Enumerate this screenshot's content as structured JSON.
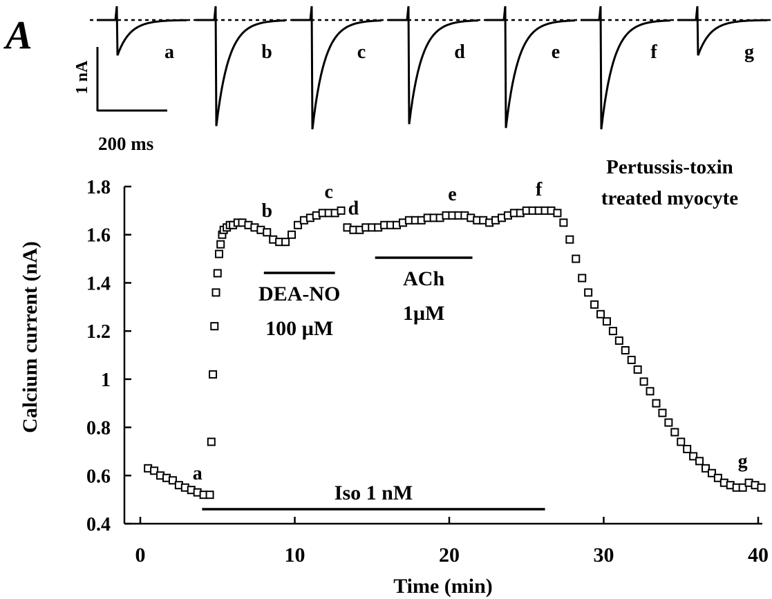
{
  "panel_label": "A",
  "scale_bar": {
    "current": "1 nA",
    "time": "200 ms"
  },
  "traces": {
    "labels": [
      "a",
      "b",
      "c",
      "d",
      "e",
      "f",
      "g"
    ],
    "peak_nA": [
      0.55,
      1.65,
      1.7,
      1.62,
      1.68,
      1.7,
      0.55
    ]
  },
  "annotation_title": [
    "Pertussis-toxin",
    "treated myocyte"
  ],
  "bars": [
    {
      "label_lines": [
        "DEA-NO",
        "100 µM"
      ],
      "start": 8,
      "end": 12.6
    },
    {
      "label_lines": [
        "ACh",
        "1µM"
      ],
      "start": 15.2,
      "end": 21.5
    },
    {
      "label_lines": [
        "Iso 1 nM"
      ],
      "start": 4.0,
      "end": 26.2
    }
  ],
  "chart_data": {
    "type": "scatter",
    "title": "",
    "xlabel": "Time (min)",
    "ylabel": "Calcium current (nA)",
    "xlim": [
      0,
      40
    ],
    "ylim": [
      0.4,
      1.8
    ],
    "xticks": [
      "0",
      "10",
      "20",
      "30",
      "40"
    ],
    "xtick_values": [
      0,
      10,
      20,
      30,
      40
    ],
    "yticks": [
      "0.4",
      "0.6",
      "0.8",
      "1",
      "1.2",
      "1.4",
      "1.6",
      "1.8"
    ],
    "ytick_values": [
      0.4,
      0.6,
      0.8,
      1.0,
      1.2,
      1.4,
      1.6,
      1.8
    ],
    "marker": "open-square",
    "series": [
      {
        "x": [
          0.5,
          0.9,
          1.3,
          1.7,
          2.1,
          2.5,
          2.9,
          3.3,
          3.7,
          4.1,
          4.5,
          4.6,
          4.7,
          4.8,
          4.9,
          5.0,
          5.1,
          5.2,
          5.3,
          5.4,
          5.6,
          5.8,
          6.0,
          6.3,
          6.6,
          7.0,
          7.4,
          7.8,
          8.2,
          8.6,
          9.0,
          9.4,
          9.8,
          10.2,
          10.6,
          11.0,
          11.4,
          11.8,
          12.2,
          12.6,
          13.0,
          13.4,
          13.8,
          14.2,
          14.6,
          15.0,
          15.4,
          15.8,
          16.2,
          16.6,
          17.0,
          17.4,
          17.8,
          18.2,
          18.6,
          19.0,
          19.4,
          19.8,
          20.2,
          20.6,
          21.0,
          21.4,
          21.8,
          22.2,
          22.6,
          23.0,
          23.4,
          23.8,
          24.2,
          24.6,
          25.0,
          25.4,
          25.8,
          26.2,
          26.6,
          27.0,
          27.4,
          27.8,
          28.2,
          28.6,
          29.0,
          29.4,
          29.8,
          30.2,
          30.6,
          31.0,
          31.4,
          31.8,
          32.2,
          32.6,
          33.0,
          33.4,
          33.8,
          34.2,
          34.6,
          35.0,
          35.4,
          35.8,
          36.2,
          36.6,
          37.0,
          37.4,
          37.8,
          38.2,
          38.6,
          39.0,
          39.4,
          39.8,
          40.2
        ],
        "y": [
          0.63,
          0.62,
          0.6,
          0.59,
          0.58,
          0.56,
          0.55,
          0.54,
          0.53,
          0.52,
          0.52,
          0.74,
          1.02,
          1.22,
          1.36,
          1.44,
          1.52,
          1.56,
          1.6,
          1.62,
          1.63,
          1.64,
          1.64,
          1.65,
          1.65,
          1.64,
          1.63,
          1.62,
          1.61,
          1.58,
          1.57,
          1.57,
          1.6,
          1.64,
          1.66,
          1.67,
          1.68,
          1.69,
          1.69,
          1.69,
          1.7,
          1.63,
          1.62,
          1.62,
          1.63,
          1.63,
          1.63,
          1.64,
          1.64,
          1.64,
          1.65,
          1.66,
          1.66,
          1.66,
          1.67,
          1.67,
          1.67,
          1.68,
          1.68,
          1.68,
          1.68,
          1.67,
          1.66,
          1.66,
          1.65,
          1.66,
          1.67,
          1.68,
          1.69,
          1.69,
          1.7,
          1.7,
          1.7,
          1.7,
          1.7,
          1.69,
          1.65,
          1.58,
          1.5,
          1.42,
          1.36,
          1.31,
          1.27,
          1.24,
          1.2,
          1.16,
          1.12,
          1.08,
          1.04,
          0.99,
          0.95,
          0.9,
          0.86,
          0.82,
          0.78,
          0.74,
          0.71,
          0.68,
          0.66,
          0.63,
          0.61,
          0.59,
          0.57,
          0.56,
          0.55,
          0.55,
          0.57,
          0.56,
          0.55
        ]
      }
    ],
    "point_labels": [
      {
        "text": "a",
        "x": 3.7,
        "y": 0.52
      },
      {
        "text": "b",
        "x": 8.2,
        "y": 1.61
      },
      {
        "text": "c",
        "x": 12.2,
        "y": 1.69
      },
      {
        "text": "d",
        "x": 13.8,
        "y": 1.62
      },
      {
        "text": "e",
        "x": 20.2,
        "y": 1.68
      },
      {
        "text": "f",
        "x": 25.8,
        "y": 1.7
      },
      {
        "text": "g",
        "x": 39.0,
        "y": 0.57
      }
    ],
    "grid": false,
    "legend": "none"
  }
}
